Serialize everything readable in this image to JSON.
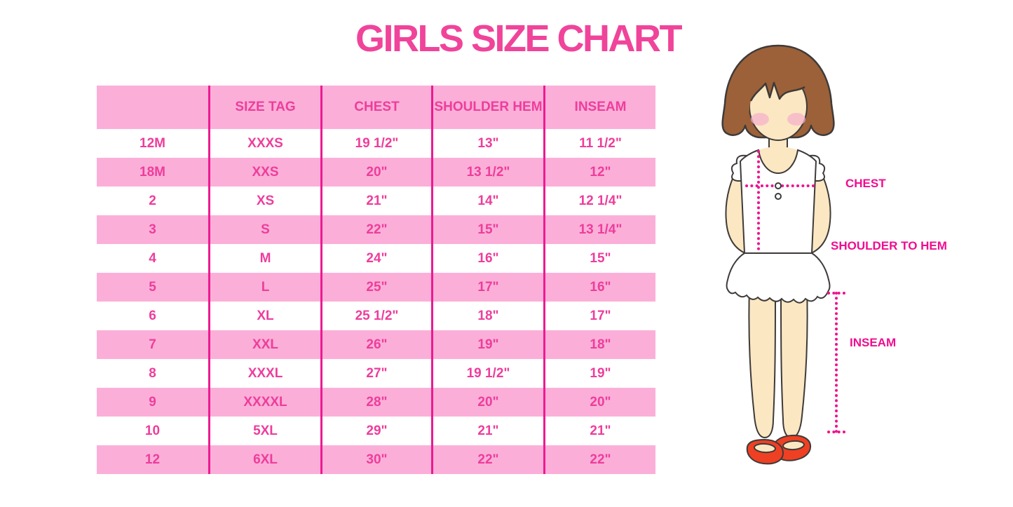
{
  "title": "GIRLS SIZE CHART",
  "chart_data": {
    "type": "table",
    "title": "GIRLS SIZE CHART",
    "columns": [
      "",
      "SIZE TAG",
      "CHEST",
      "SHOULDER HEM",
      "INSEAM"
    ],
    "rows": [
      [
        "12M",
        "XXXS",
        "19 1/2\"",
        "13\"",
        "11 1/2\""
      ],
      [
        "18M",
        "XXS",
        "20\"",
        "13 1/2\"",
        "12\""
      ],
      [
        "2",
        "XS",
        "21\"",
        "14\"",
        "12 1/4\""
      ],
      [
        "3",
        "S",
        "22\"",
        "15\"",
        "13 1/4\""
      ],
      [
        "4",
        "M",
        "24\"",
        "16\"",
        "15\""
      ],
      [
        "5",
        "L",
        "25\"",
        "17\"",
        "16\""
      ],
      [
        "6",
        "XL",
        "25 1/2\"",
        "18\"",
        "17\""
      ],
      [
        "7",
        "XXL",
        "26\"",
        "19\"",
        "18\""
      ],
      [
        "8",
        "XXXL",
        "27\"",
        "19 1/2\"",
        "19\""
      ],
      [
        "9",
        "XXXXL",
        "28\"",
        "20\"",
        "20\""
      ],
      [
        "10",
        "5XL",
        "29\"",
        "21\"",
        "21\""
      ],
      [
        "12",
        "6XL",
        "30\"",
        "22\"",
        "22\""
      ]
    ]
  },
  "figure_labels": {
    "chest": "CHEST",
    "shoulder_to_hem": "SHOULDER TO HEM",
    "inseam": "INSEAM"
  },
  "colors": {
    "title_pink": "#F0449B",
    "row_pink": "#FBAFD8",
    "grid_magenta": "#EC1A92",
    "cell_text_pink": "#EE3D9C",
    "label_magenta": "#F00D8F",
    "dot_magenta": "#F0128F",
    "hair_brown": "#9C6138",
    "skin": "#FBE7C2",
    "blush": "#F5B3CB",
    "shoe_red": "#EF4023",
    "outline": "#3E3A39"
  }
}
